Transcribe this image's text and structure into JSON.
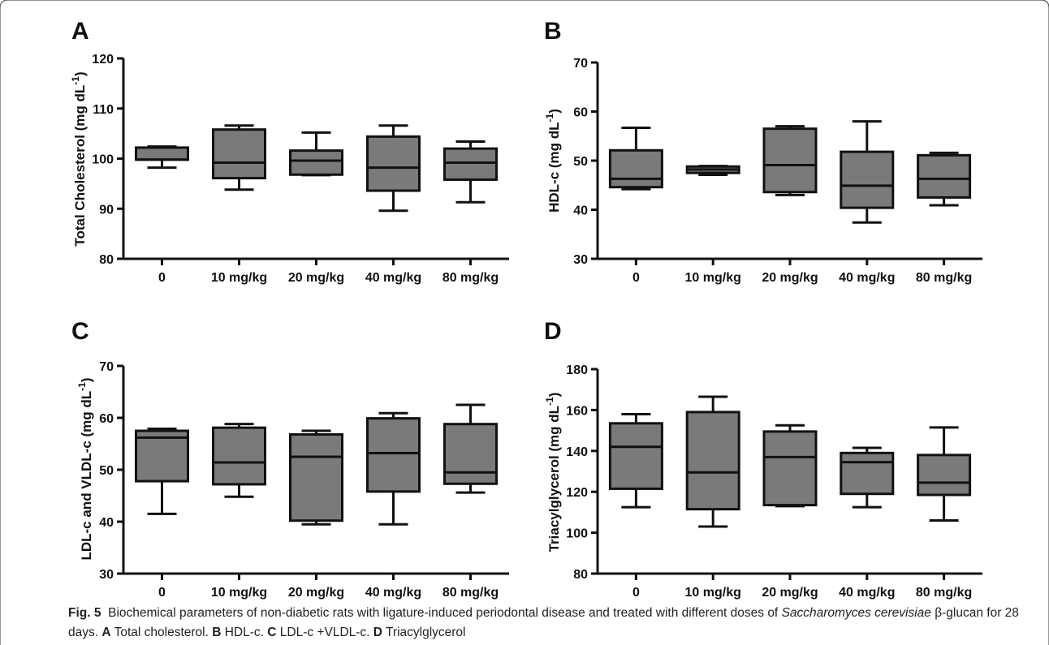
{
  "figure": {
    "caption_label": "Fig. 5",
    "caption_text_1": "Biochemical parameters of non-diabetic rats with ligature-induced periodontal disease and treated with different doses of ",
    "caption_italic": "Saccharomyces cerevisiae",
    "caption_text_2": " β-glucan for 28 days. ",
    "caption_parts": [
      {
        "letter": "A",
        "text": " Total cholesterol. "
      },
      {
        "letter": "B",
        "text": " HDL-c. "
      },
      {
        "letter": "C",
        "text": " LDL-c +VLDL-c. "
      },
      {
        "letter": "D",
        "text": " Triacylglycerol"
      }
    ]
  },
  "chart_data": [
    {
      "panel": "A",
      "type": "box",
      "categories": [
        "0",
        "10 mg/kg",
        "20 mg/kg",
        "40 mg/kg",
        "80 mg/kg"
      ],
      "ylabel": "Total Cholesterol (mg dL",
      "ylabel_sup": "-1",
      "ylabel_close": ")",
      "ylim": [
        80,
        120
      ],
      "yticks": [
        80,
        90,
        100,
        110,
        120
      ],
      "boxes": [
        {
          "min": 98.2,
          "q1": 99.8,
          "median": 99.8,
          "q3": 102.2,
          "max": 102.4
        },
        {
          "min": 93.8,
          "q1": 96.1,
          "median": 99.2,
          "q3": 105.8,
          "max": 106.6
        },
        {
          "min": 96.7,
          "q1": 96.8,
          "median": 99.6,
          "q3": 101.6,
          "max": 105.2
        },
        {
          "min": 89.6,
          "q1": 93.6,
          "median": 98.2,
          "q3": 104.4,
          "max": 106.6
        },
        {
          "min": 91.3,
          "q1": 95.8,
          "median": 99.2,
          "q3": 102.0,
          "max": 103.4
        }
      ]
    },
    {
      "panel": "B",
      "type": "box",
      "categories": [
        "0",
        "10 mg/kg",
        "20 mg/kg",
        "40 mg/kg",
        "80 mg/kg"
      ],
      "ylabel": "HDL-c (mg dL",
      "ylabel_sup": "-1",
      "ylabel_close": ")",
      "ylim": [
        30,
        70
      ],
      "yticks": [
        30,
        40,
        50,
        60,
        70
      ],
      "boxes": [
        {
          "min": 44.2,
          "q1": 44.6,
          "median": 46.3,
          "q3": 52.1,
          "max": 56.7
        },
        {
          "min": 47.1,
          "q1": 47.5,
          "median": 48.2,
          "q3": 48.8,
          "max": 48.9
        },
        {
          "min": 43.0,
          "q1": 43.6,
          "median": 49.1,
          "q3": 56.5,
          "max": 57.0
        },
        {
          "min": 37.4,
          "q1": 40.4,
          "median": 44.9,
          "q3": 51.8,
          "max": 58.0
        },
        {
          "min": 40.9,
          "q1": 42.5,
          "median": 46.3,
          "q3": 51.1,
          "max": 51.6
        }
      ]
    },
    {
      "panel": "C",
      "type": "box",
      "categories": [
        "0",
        "10 mg/kg",
        "20 mg/kg",
        "40 mg/kg",
        "80 mg/kg"
      ],
      "ylabel": "LDL-c and VLDL-c (mg dL",
      "ylabel_sup": "-1",
      "ylabel_close": ")",
      "ylim": [
        30,
        70
      ],
      "yticks": [
        30,
        40,
        50,
        60,
        70
      ],
      "boxes": [
        {
          "min": 41.5,
          "q1": 47.8,
          "median": 56.2,
          "q3": 57.5,
          "max": 57.9
        },
        {
          "min": 44.8,
          "q1": 47.2,
          "median": 51.4,
          "q3": 58.1,
          "max": 58.8
        },
        {
          "min": 39.5,
          "q1": 40.2,
          "median": 52.5,
          "q3": 56.8,
          "max": 57.5
        },
        {
          "min": 39.5,
          "q1": 45.8,
          "median": 53.2,
          "q3": 59.9,
          "max": 60.9
        },
        {
          "min": 45.6,
          "q1": 47.3,
          "median": 49.5,
          "q3": 58.8,
          "max": 62.5
        }
      ]
    },
    {
      "panel": "D",
      "type": "box",
      "categories": [
        "0",
        "10 mg/kg",
        "20 mg/kg",
        "40 mg/kg",
        "80 mg/kg"
      ],
      "ylabel": "Triacylglycerol (mg dL",
      "ylabel_sup": "-1",
      "ylabel_close": ")",
      "ylim": [
        80,
        180
      ],
      "yticks": [
        80,
        100,
        120,
        140,
        160,
        180
      ],
      "boxes": [
        {
          "min": 112.5,
          "q1": 121.5,
          "median": 142.0,
          "q3": 153.5,
          "max": 158.0
        },
        {
          "min": 103.0,
          "q1": 111.5,
          "median": 129.5,
          "q3": 159.0,
          "max": 166.5
        },
        {
          "min": 113.0,
          "q1": 113.5,
          "median": 137.0,
          "q3": 149.5,
          "max": 152.5
        },
        {
          "min": 112.5,
          "q1": 119.0,
          "median": 134.5,
          "q3": 139.0,
          "max": 141.5
        },
        {
          "min": 106.0,
          "q1": 118.5,
          "median": 124.5,
          "q3": 138.0,
          "max": 151.5
        }
      ]
    }
  ]
}
